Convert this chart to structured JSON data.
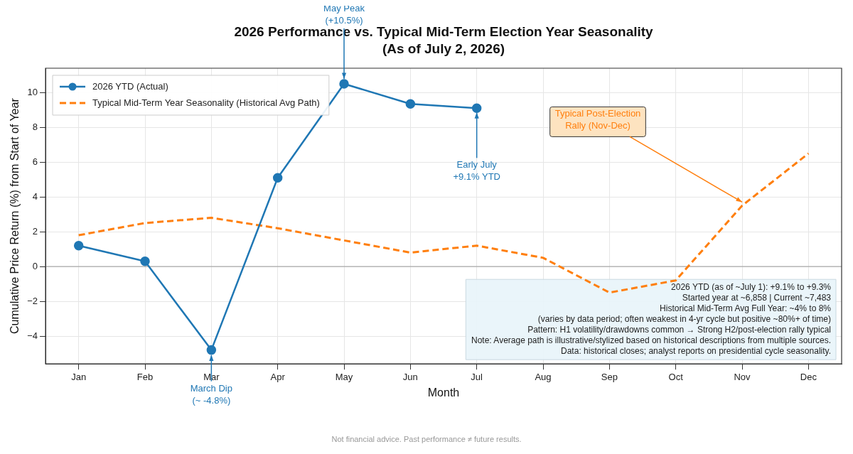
{
  "chart_data": {
    "type": "line",
    "title": "2026 Performance vs. Typical Mid-Term Election Year Seasonality",
    "subtitle": "(As of July 2, 2026)",
    "xlabel": "Month",
    "ylabel": "Cumulative Price Return (%) from Start of Year",
    "categories": [
      "Jan",
      "Feb",
      "Mar",
      "Apr",
      "May",
      "Jun",
      "Jul",
      "Aug",
      "Sep",
      "Oct",
      "Nov",
      "Dec"
    ],
    "series": [
      {
        "name": "2026 YTD (Actual)",
        "color": "#1f77b4",
        "values": [
          1.2,
          0.3,
          -4.8,
          5.1,
          10.5,
          9.35,
          9.1,
          null,
          null,
          null,
          null,
          null
        ],
        "marker": "circle",
        "line_style": "solid"
      },
      {
        "name": "Typical Mid-Term Year Seasonality (Historical Avg Path)",
        "color": "#ff7f0e",
        "values": [
          1.8,
          2.5,
          2.8,
          2.2,
          1.5,
          0.8,
          1.2,
          0.5,
          -1.5,
          -0.8,
          3.5,
          6.5
        ],
        "marker": "none",
        "line_style": "dashed"
      }
    ],
    "ylim": [
      -5.6,
      11.4
    ],
    "yticks": [
      -4,
      -2,
      0,
      2,
      4,
      6,
      8,
      10
    ],
    "grid": true,
    "legend": "top left",
    "ref_lines": [
      {
        "axis": "y",
        "value": 0,
        "color": "#999999"
      }
    ],
    "annotations": [
      {
        "text": "May Peak\n(+10.5%)",
        "x": "May",
        "y": 10.5
      },
      {
        "text": "Early July\n+9.1% YTD",
        "x": "Jul",
        "y": 9.1
      },
      {
        "text": "March Dip\n(~ -4.8%)",
        "x": "Mar",
        "y": -4.8
      },
      {
        "text": "Typical Post-Election\nRally (Nov-Dec)",
        "x": "Nov",
        "y": 3.5
      },
      "2026 YTD (as of ~July 1): +9.1% to +9.3%\nStarted year at ~6,858 | Current ~7,483\nHistorical Mid-Term Avg Full Year: ~4% to 8%\n(varies by data period; often weakest in 4-yr cycle but positive ~80%+ of time)\nPattern: H1 volatility/drawdowns common → Strong H2/post-election rally typical\nNote: Average path is illustrative/stylized based on historical descriptions from multiple sources.\nData: historical closes; analyst reports on presidential cycle seasonality.",
      "Not financial advice. Past performance ≠ future results."
    ]
  }
}
